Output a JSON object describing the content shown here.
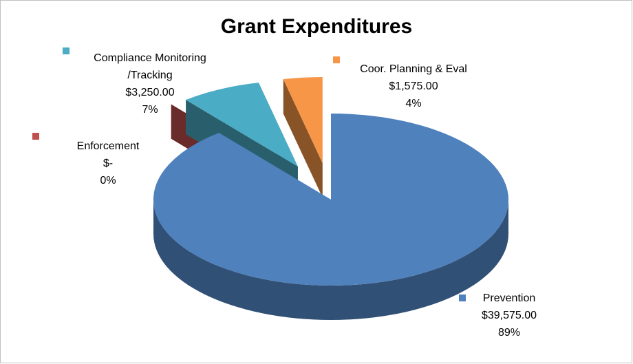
{
  "chart_data": {
    "type": "pie3d",
    "title": "Grant Expenditures",
    "categories": [
      "Prevention",
      "Enforcement",
      "Compliance Monitoring /Tracking",
      "Coor. Planning & Eval"
    ],
    "values": [
      39575,
      0,
      3250,
      1575
    ],
    "value_labels": [
      "$39,575.00",
      "$-",
      "$3,250.00",
      "$1,575.00"
    ],
    "percent_labels": [
      "89%",
      "0%",
      "7%",
      "4%"
    ],
    "colors": [
      "#4f81bd",
      "#c0504d",
      "#4bacc6",
      "#f79646"
    ]
  }
}
